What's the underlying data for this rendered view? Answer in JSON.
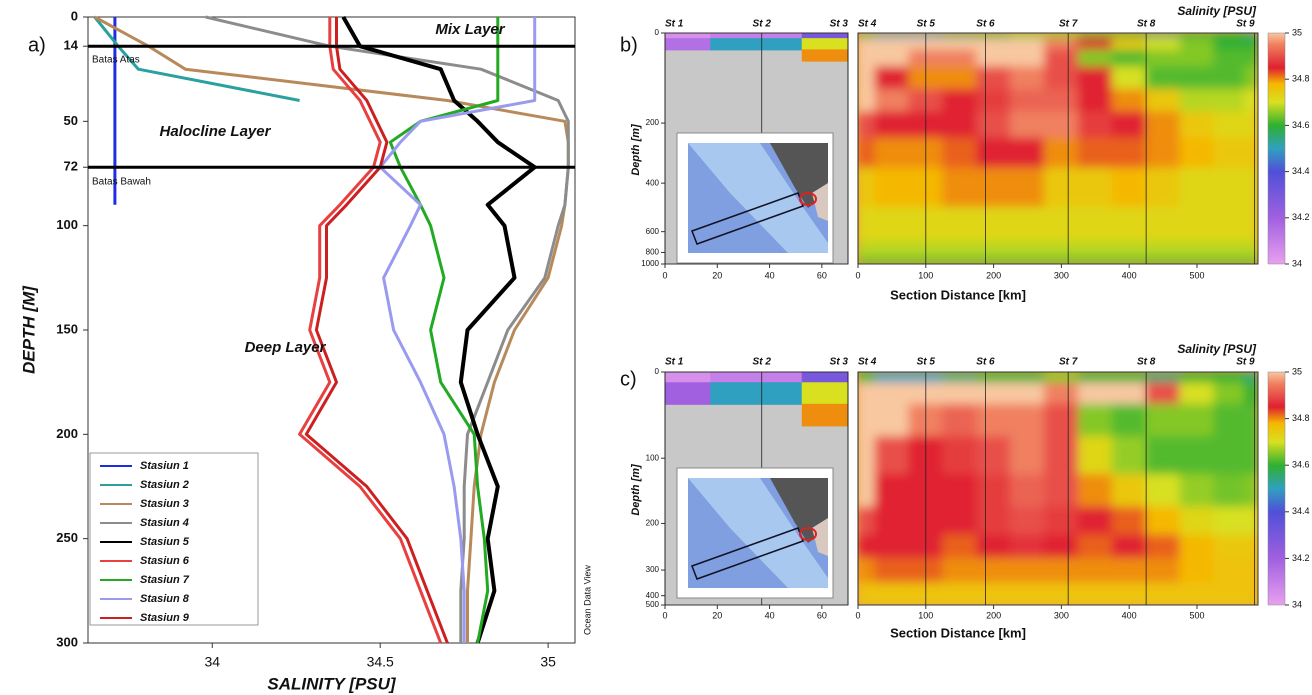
{
  "chart_data": [
    {
      "type": "line",
      "panel_label": "a)",
      "xlabel": "SALINITY [PSU]",
      "ylabel": "DEPTH [M]",
      "xlim": [
        33.63,
        35.08
      ],
      "xticks": [
        34,
        34.5,
        35
      ],
      "ylim": [
        0,
        300
      ],
      "yticks": [
        0,
        14,
        50,
        72,
        100,
        150,
        200,
        250,
        300
      ],
      "hlines": [
        14,
        72
      ],
      "annotations": {
        "mix_layer": "Mix Layer",
        "halocline_layer": "Halocline Layer",
        "deep_layer": "Deep Layer",
        "upper_bound": "Batas Atas",
        "lower_bound": "Batas Bawah",
        "watermark": "Ocean Data View"
      },
      "y": [
        0,
        14,
        25,
        40,
        50,
        60,
        72,
        90,
        100,
        125,
        150,
        175,
        200,
        225,
        250,
        275,
        300
      ],
      "series": [
        {
          "name": "Stasiun 1",
          "color": "#1f2de0",
          "values": [
            33.71,
            33.71,
            33.71,
            33.71,
            33.71,
            33.71,
            33.71,
            33.71,
            null,
            null,
            null,
            null,
            null,
            null,
            null,
            null,
            null
          ]
        },
        {
          "name": "Stasiun 2",
          "color": "#2aa0a0",
          "values": [
            33.65,
            33.72,
            33.78,
            34.26,
            null,
            null,
            null,
            null,
            null,
            null,
            null,
            null,
            null,
            null,
            null,
            null,
            null
          ]
        },
        {
          "name": "Stasiun 3",
          "color": "#b8895a",
          "values": [
            33.65,
            33.81,
            33.92,
            34.7,
            35.05,
            35.06,
            35.06,
            35.05,
            35.04,
            35.0,
            34.9,
            34.84,
            34.8,
            34.78,
            34.77,
            34.76,
            34.76
          ]
        },
        {
          "name": "Stasiun 4",
          "color": "#8c8c8c",
          "values": [
            33.98,
            34.35,
            34.8,
            35.03,
            35.06,
            35.06,
            35.06,
            35.05,
            35.03,
            34.99,
            34.88,
            34.82,
            34.76,
            34.75,
            34.75,
            34.74,
            34.74
          ]
        },
        {
          "name": "Stasiun 5",
          "color": "#000000",
          "values": [
            34.39,
            34.44,
            34.68,
            34.72,
            34.79,
            34.85,
            34.96,
            34.82,
            34.87,
            34.9,
            34.76,
            34.74,
            34.79,
            34.85,
            34.82,
            34.84,
            34.79
          ]
        },
        {
          "name": "Stasiun 6",
          "color": "#e84040",
          "values": [
            34.35,
            34.35,
            34.36,
            34.44,
            34.47,
            34.5,
            34.48,
            34.38,
            34.32,
            34.32,
            34.29,
            34.35,
            34.26,
            34.44,
            34.56,
            34.62,
            34.68
          ]
        },
        {
          "name": "Stasiun 7",
          "color": "#22aa22",
          "values": [
            34.85,
            34.85,
            34.85,
            34.85,
            34.62,
            34.53,
            34.56,
            34.62,
            34.65,
            34.69,
            34.65,
            34.68,
            34.78,
            34.79,
            34.81,
            34.82,
            34.79
          ]
        },
        {
          "name": "Stasiun 8",
          "color": "#9a9af0",
          "values": [
            34.96,
            34.96,
            34.96,
            34.96,
            34.62,
            34.56,
            34.5,
            34.62,
            34.59,
            34.51,
            34.54,
            34.62,
            34.69,
            34.72,
            34.74,
            34.75,
            34.75
          ]
        },
        {
          "name": "Stasiun 9",
          "color": "#cc2020",
          "values": [
            34.37,
            34.37,
            34.38,
            34.46,
            34.49,
            34.52,
            34.5,
            34.4,
            34.34,
            34.34,
            34.31,
            34.37,
            34.28,
            34.46,
            34.58,
            34.64,
            34.7
          ]
        }
      ]
    },
    {
      "type": "heatmap",
      "panel_label": "b)",
      "title": "Salinity [PSU]",
      "xlabel": "Section Distance [km]",
      "ylabel": "Depth [m]",
      "ylim": [
        0,
        1000
      ],
      "yticks": [
        0,
        200,
        400,
        600,
        800,
        1000
      ],
      "colorscale": [
        {
          "value": 34,
          "color": "#e8a0f0"
        },
        {
          "value": 34.2,
          "color": "#a060e0"
        },
        {
          "value": 34.4,
          "color": "#5050d8"
        },
        {
          "value": 34.5,
          "color": "#30a0c0"
        },
        {
          "value": 34.6,
          "color": "#30b030"
        },
        {
          "value": 34.7,
          "color": "#d8e020"
        },
        {
          "value": 34.78,
          "color": "#f5b800"
        },
        {
          "value": 34.85,
          "color": "#e02030"
        },
        {
          "value": 34.95,
          "color": "#f08060"
        },
        {
          "value": 35,
          "color": "#f8c8a0"
        }
      ],
      "cticks": [
        34,
        34.2,
        34.4,
        34.6,
        34.8,
        35
      ],
      "sections": [
        {
          "xlim": [
            0,
            70
          ],
          "xticks": [
            0,
            20,
            40,
            60
          ],
          "stations": [
            {
              "name": "St 1",
              "x": 0
            },
            {
              "name": "St 2",
              "x": 37
            },
            {
              "name": "St 3",
              "x": 70
            }
          ],
          "x": [
            0,
            35,
            70
          ],
          "depths": [
            0,
            25,
            50
          ],
          "z": [
            [
              34.05,
              34.1,
              34.3
            ],
            [
              34.15,
              34.5,
              34.7
            ],
            [
              null,
              null,
              34.8
            ]
          ]
        },
        {
          "xlim": [
            0,
            590
          ],
          "xticks": [
            0,
            100,
            200,
            300,
            400,
            500
          ],
          "stations": [
            {
              "name": "St 4",
              "x": 0
            },
            {
              "name": "St 5",
              "x": 100
            },
            {
              "name": "St 6",
              "x": 188
            },
            {
              "name": "St 7",
              "x": 310
            },
            {
              "name": "St 8",
              "x": 425
            },
            {
              "name": "St 9",
              "x": 585
            }
          ],
          "x": [
            0,
            50,
            100,
            150,
            200,
            250,
            300,
            350,
            400,
            450,
            500,
            550,
            590
          ],
          "depths": [
            0,
            25,
            50,
            100,
            150,
            200,
            300,
            400,
            600,
            800,
            1000
          ],
          "z": [
            [
              34.6,
              34.5,
              34.5,
              34.55,
              34.6,
              34.65,
              34.65,
              34.6,
              34.6,
              34.55,
              34.6,
              34.6,
              34.55
            ],
            [
              35,
              35,
              35,
              35,
              35,
              35,
              34.95,
              34.85,
              34.75,
              34.7,
              34.65,
              34.6,
              34.6
            ],
            [
              35,
              35,
              34.95,
              34.95,
              35,
              35,
              34.9,
              34.65,
              34.62,
              34.65,
              34.65,
              34.62,
              34.62
            ],
            [
              35,
              34.85,
              34.8,
              34.8,
              34.9,
              34.95,
              34.9,
              34.85,
              34.7,
              34.62,
              34.62,
              34.62,
              34.65
            ],
            [
              35,
              34.95,
              34.9,
              34.85,
              34.88,
              34.92,
              34.92,
              34.85,
              34.8,
              34.75,
              34.68,
              34.68,
              34.7
            ],
            [
              34.9,
              34.85,
              34.85,
              34.85,
              34.9,
              34.95,
              34.95,
              34.88,
              34.85,
              34.8,
              34.75,
              34.72,
              34.72
            ],
            [
              34.82,
              34.8,
              34.8,
              34.82,
              34.85,
              34.85,
              34.8,
              34.82,
              34.82,
              34.8,
              34.78,
              34.75,
              34.75
            ],
            [
              34.75,
              34.78,
              34.78,
              34.8,
              34.8,
              34.8,
              34.75,
              34.75,
              34.78,
              34.75,
              34.72,
              34.72,
              34.72
            ],
            [
              34.72,
              34.72,
              34.72,
              34.72,
              34.72,
              34.72,
              34.72,
              34.72,
              34.72,
              34.72,
              34.72,
              34.72,
              34.72
            ],
            [
              34.68,
              34.68,
              34.68,
              34.68,
              34.68,
              34.68,
              34.68,
              34.68,
              34.68,
              34.68,
              34.68,
              34.68,
              34.68
            ],
            [
              34.62,
              34.62,
              34.62,
              34.62,
              34.62,
              34.62,
              34.62,
              34.62,
              34.62,
              34.62,
              34.62,
              34.62,
              34.62
            ]
          ]
        }
      ]
    },
    {
      "type": "heatmap",
      "panel_label": "c)",
      "title": "Salinity [PSU]",
      "xlabel": "Section Distance [km]",
      "ylabel": "Depth [m]",
      "ylim": [
        0,
        500
      ],
      "yticks": [
        0,
        100,
        200,
        300,
        400,
        500
      ],
      "colorscale": [
        {
          "value": 34,
          "color": "#e8a0f0"
        },
        {
          "value": 34.2,
          "color": "#a060e0"
        },
        {
          "value": 34.4,
          "color": "#5050d8"
        },
        {
          "value": 34.5,
          "color": "#30a0c0"
        },
        {
          "value": 34.6,
          "color": "#30b030"
        },
        {
          "value": 34.7,
          "color": "#d8e020"
        },
        {
          "value": 34.78,
          "color": "#f5b800"
        },
        {
          "value": 34.85,
          "color": "#e02030"
        },
        {
          "value": 34.95,
          "color": "#f08060"
        },
        {
          "value": 35,
          "color": "#f8c8a0"
        }
      ],
      "cticks": [
        34,
        34.2,
        34.4,
        34.6,
        34.8,
        35
      ],
      "sections": [
        {
          "xlim": [
            0,
            70
          ],
          "xticks": [
            0,
            20,
            40,
            60
          ],
          "stations": [
            {
              "name": "St 1",
              "x": 0
            },
            {
              "name": "St 2",
              "x": 37
            },
            {
              "name": "St 3",
              "x": 70
            }
          ],
          "x": [
            0,
            35,
            70
          ],
          "depths": [
            0,
            25,
            50
          ],
          "z": [
            [
              34.05,
              34.1,
              34.3
            ],
            [
              34.2,
              34.5,
              34.7
            ],
            [
              null,
              null,
              34.8
            ]
          ]
        },
        {
          "xlim": [
            0,
            590
          ],
          "xticks": [
            0,
            100,
            200,
            300,
            400,
            500
          ],
          "stations": [
            {
              "name": "St 4",
              "x": 0
            },
            {
              "name": "St 5",
              "x": 100
            },
            {
              "name": "St 6",
              "x": 188
            },
            {
              "name": "St 7",
              "x": 310
            },
            {
              "name": "St 8",
              "x": 425
            },
            {
              "name": "St 9",
              "x": 585
            }
          ],
          "x": [
            0,
            50,
            100,
            150,
            200,
            250,
            300,
            350,
            400,
            450,
            500,
            550,
            590
          ],
          "depths": [
            0,
            25,
            50,
            100,
            150,
            200,
            250,
            300,
            400,
            500
          ],
          "z": [
            [
              34.6,
              34.5,
              34.5,
              34.55,
              34.6,
              34.6,
              34.65,
              34.6,
              34.6,
              34.55,
              34.6,
              34.6,
              34.55
            ],
            [
              35,
              35,
              35,
              35,
              35,
              35,
              34.95,
              35,
              35,
              34.9,
              34.7,
              34.65,
              34.6
            ],
            [
              35,
              35,
              34.95,
              34.92,
              34.95,
              34.95,
              34.9,
              34.65,
              34.62,
              34.65,
              34.65,
              34.62,
              34.62
            ],
            [
              35,
              34.9,
              34.85,
              34.88,
              34.9,
              34.95,
              34.9,
              34.72,
              34.66,
              34.62,
              34.62,
              34.62,
              34.62
            ],
            [
              35,
              34.85,
              34.85,
              34.85,
              34.88,
              34.92,
              34.9,
              34.8,
              34.75,
              34.7,
              34.66,
              34.64,
              34.65
            ],
            [
              34.9,
              34.85,
              34.85,
              34.85,
              34.88,
              34.9,
              34.88,
              34.85,
              34.82,
              34.78,
              34.72,
              34.7,
              34.7
            ],
            [
              34.85,
              34.85,
              34.85,
              34.82,
              34.85,
              34.87,
              34.85,
              34.82,
              34.85,
              34.82,
              34.78,
              34.75,
              34.75
            ],
            [
              34.8,
              34.82,
              34.82,
              34.8,
              34.8,
              34.8,
              34.8,
              34.8,
              34.8,
              34.8,
              34.78,
              34.76,
              34.76
            ],
            [
              34.76,
              34.76,
              34.76,
              34.76,
              34.76,
              34.76,
              34.76,
              34.76,
              34.76,
              34.76,
              34.76,
              34.76,
              34.76
            ],
            [
              34.74,
              34.74,
              34.74,
              34.74,
              34.74,
              34.74,
              34.74,
              34.74,
              34.74,
              34.74,
              34.74,
              34.74,
              34.74
            ]
          ]
        }
      ]
    }
  ]
}
